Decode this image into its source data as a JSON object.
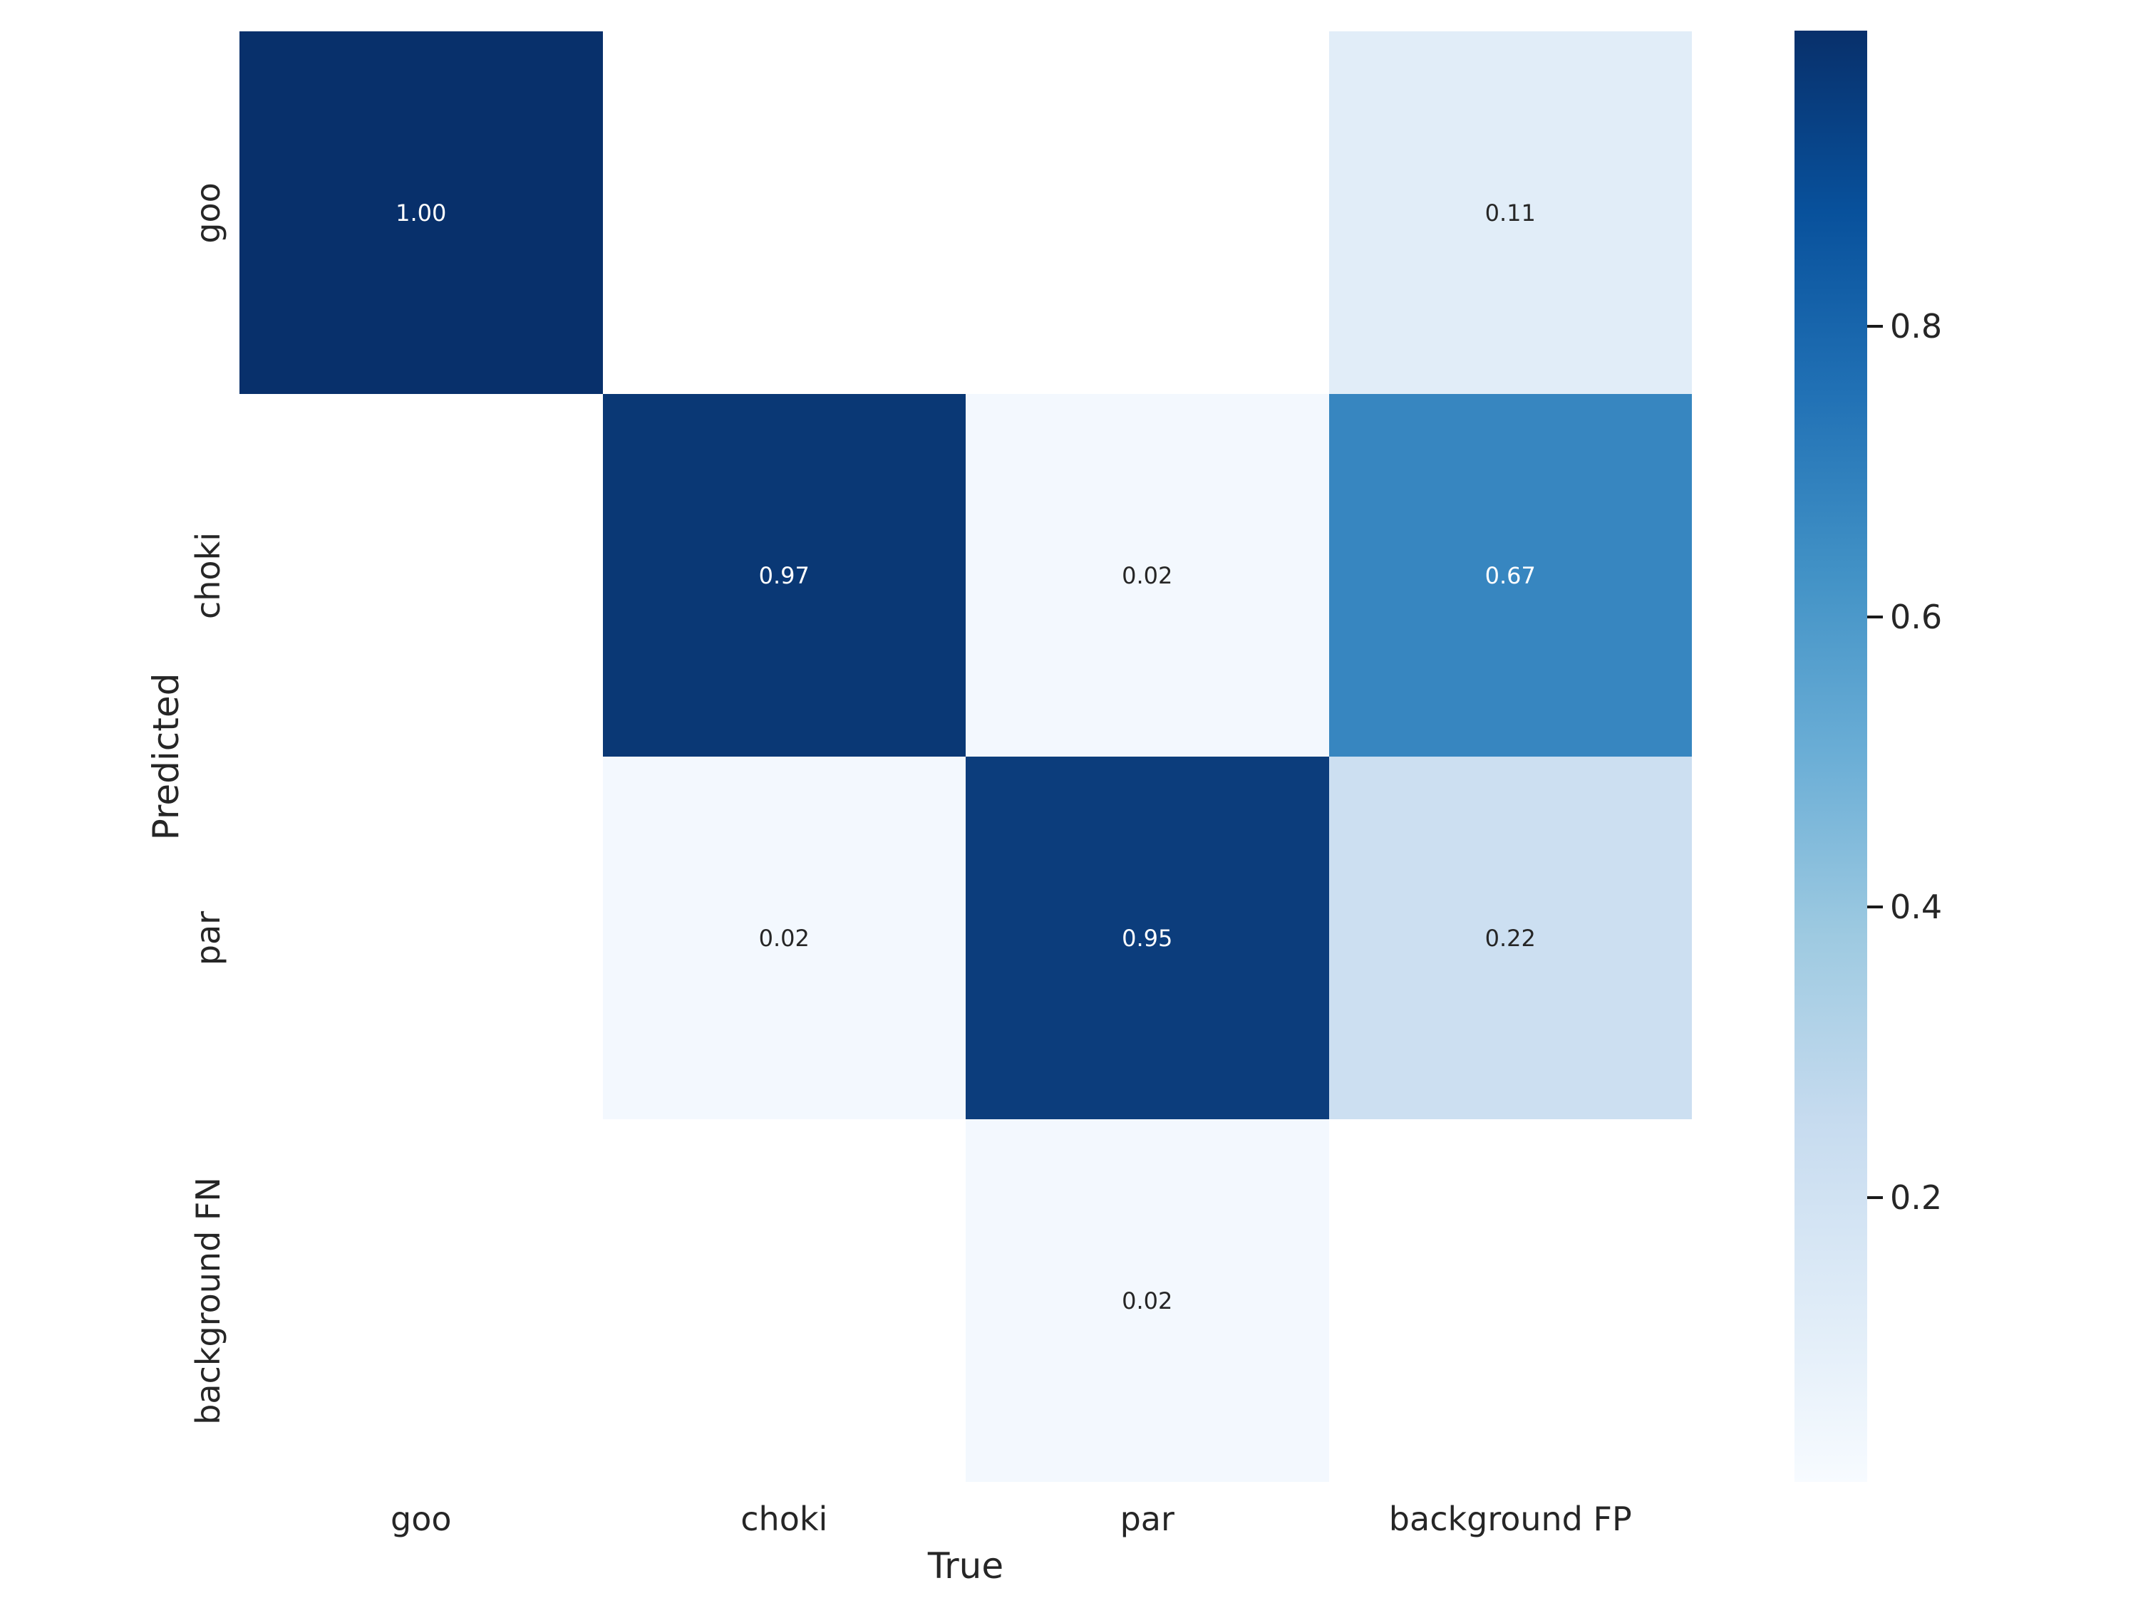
{
  "figure": {
    "background": "#ffffff",
    "xlabel": "True",
    "ylabel": "Predicted"
  },
  "chart_data": {
    "type": "heatmap",
    "title": "",
    "xlabel": "True",
    "ylabel": "Predicted",
    "x_categories": [
      "goo",
      "choki",
      "par",
      "background FP"
    ],
    "y_categories": [
      "goo",
      "choki",
      "par",
      "background FN"
    ],
    "matrix": [
      [
        1.0,
        null,
        null,
        0.11
      ],
      [
        null,
        0.97,
        0.02,
        0.67
      ],
      [
        null,
        0.02,
        0.95,
        0.22
      ],
      [
        null,
        null,
        0.02,
        null
      ]
    ],
    "annotations": [
      [
        "1.00",
        "",
        "",
        "0.11"
      ],
      [
        "",
        "0.97",
        "0.02",
        "0.67"
      ],
      [
        "",
        "0.02",
        "0.95",
        "0.22"
      ],
      [
        "",
        "",
        "0.02",
        ""
      ]
    ],
    "cell_colors": [
      [
        "#08306b",
        "#ffffff",
        "#ffffff",
        "#e1edf8"
      ],
      [
        "#ffffff",
        "#0a3875",
        "#f3f8fe",
        "#3786c0"
      ],
      [
        "#ffffff",
        "#f3f8fe",
        "#0c3d7c",
        "#ccdff1"
      ],
      [
        "#ffffff",
        "#ffffff",
        "#f3f8fe",
        "#ffffff"
      ]
    ],
    "cell_text_colors": [
      [
        "#ffffff",
        "",
        "",
        "#262626"
      ],
      [
        "",
        "#ffffff",
        "#262626",
        "#ffffff"
      ],
      [
        "",
        "#262626",
        "#ffffff",
        "#262626"
      ],
      [
        "",
        "",
        "#262626",
        ""
      ]
    ],
    "colormap": "Blues",
    "vmin": 0,
    "vmax": 1,
    "grid": false,
    "colorbar": {
      "position": "right",
      "tick_labels": [
        "0.8",
        "0.6",
        "0.4",
        "0.2"
      ],
      "tick_values": [
        0.8,
        0.6,
        0.4,
        0.2
      ],
      "gradient_top_to_bottom": [
        "#08306b",
        "#08519c",
        "#2171b5",
        "#4292c6",
        "#6baed6",
        "#9ecae1",
        "#c6dbef",
        "#deebf7",
        "#f7fbff"
      ]
    }
  },
  "layout_hints": {
    "tick_color": "#1a1a1a",
    "label_color": "#262626"
  }
}
